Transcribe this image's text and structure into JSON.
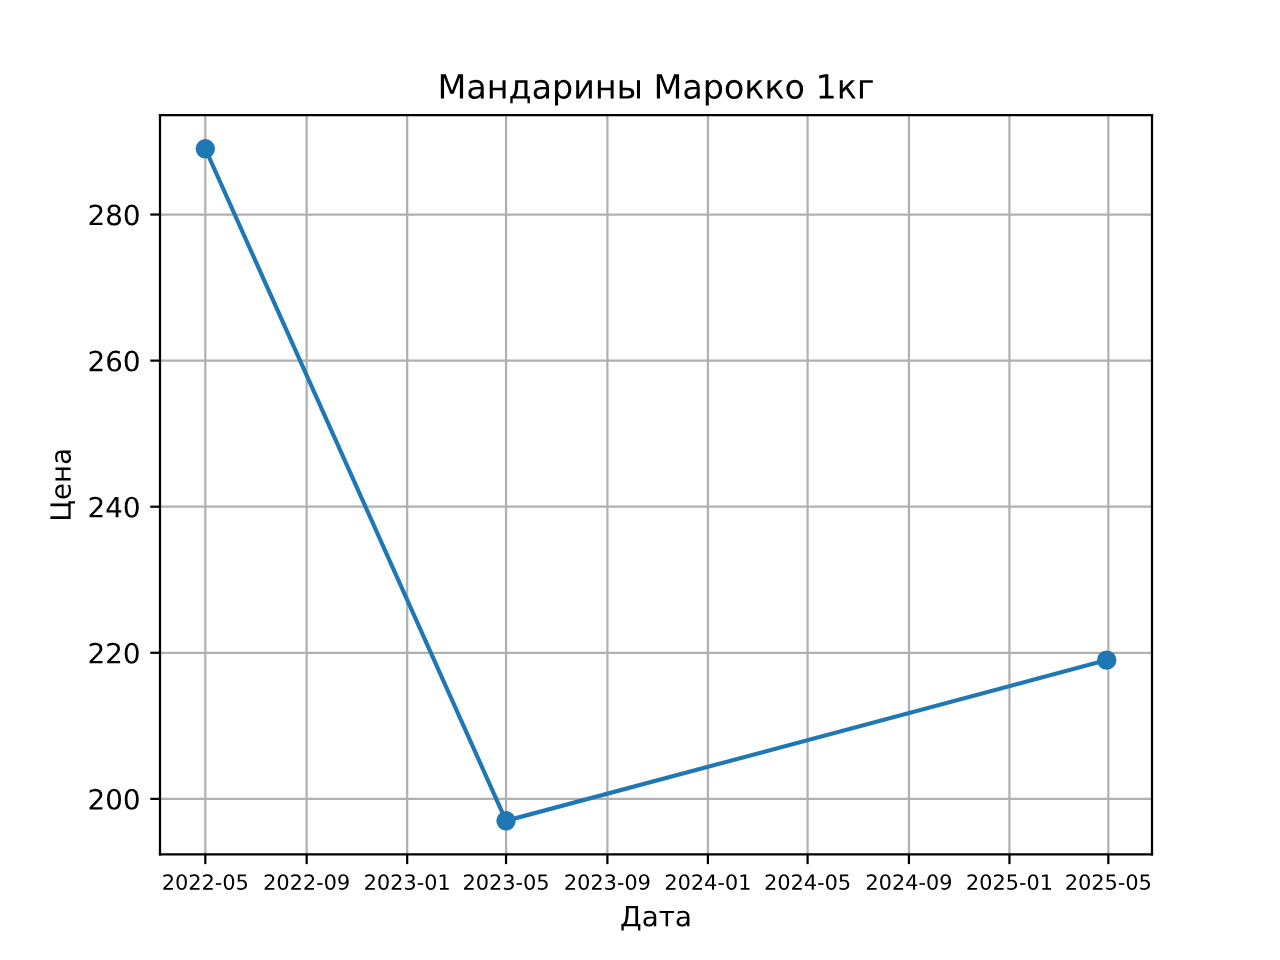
{
  "chart_data": {
    "type": "line",
    "title": "Мандарины Марокко 1кг",
    "xlabel": "Дата",
    "ylabel": "Цена",
    "x": [
      "2022-05-01",
      "2023-05-01",
      "2025-04-29"
    ],
    "series": [
      {
        "color": "#1f77b4",
        "values": [
          289,
          197,
          219
        ]
      }
    ],
    "marker": "circle",
    "line_style": "solid",
    "grid": true,
    "xlim": [
      "2022-03-07",
      "2025-06-23"
    ],
    "xticks": [
      "2022-05",
      "2022-09",
      "2023-01",
      "2023-05",
      "2023-09",
      "2024-01",
      "2024-05",
      "2024-09",
      "2025-01",
      "2025-05"
    ],
    "ylim": [
      192.4,
      293.6
    ],
    "yticks": [
      200,
      220,
      240,
      260,
      280
    ]
  }
}
